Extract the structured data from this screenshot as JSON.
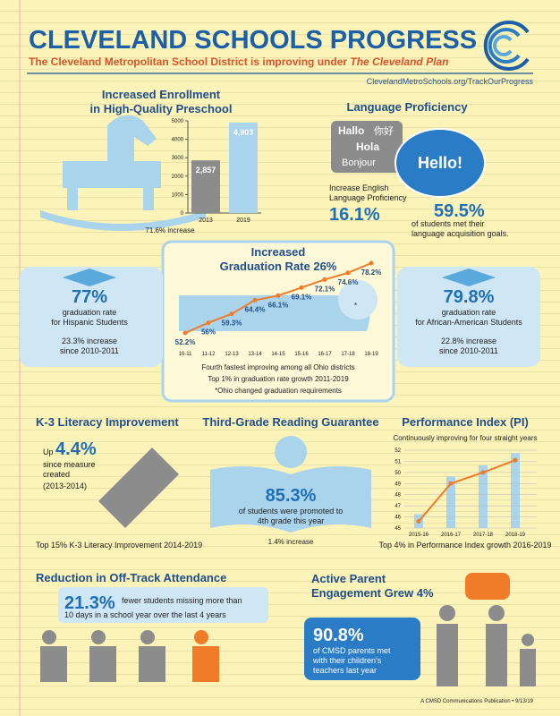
{
  "header": {
    "title": "CLEVELAND SCHOOLS PROGRESS",
    "subtitle": "The Cleveland Metropolitan School District is improving under",
    "subtitle_em": "The Cleveland Plan",
    "url": "ClevelandMetroSchools.org/TrackOurProgress"
  },
  "enrollment": {
    "type": "bar",
    "title": [
      "Increased Enrollment",
      "in High-Quality Preschool"
    ],
    "categories": [
      "2013",
      "2019"
    ],
    "values": [
      2857,
      4903
    ],
    "value_labels": [
      "2,857",
      "4,903"
    ],
    "colors": [
      "#8c8c8c",
      "#a9d4ec"
    ],
    "ylim": [
      0,
      5000
    ],
    "yticks": [
      0,
      1000,
      2000,
      3000,
      4000,
      5000
    ],
    "note": "71.6% increase"
  },
  "language": {
    "title": "Language Proficiency",
    "greetings": [
      "Hallo",
      "你好",
      "Hola",
      "Bonjour",
      "Hello!"
    ],
    "label": [
      "Increase English",
      "Language Proficiency"
    ],
    "stat": "16.1%",
    "stat2": "59.5%",
    "text2": [
      "of students met their",
      "language acquisition goals."
    ]
  },
  "graduation": {
    "type": "line",
    "title": [
      "Increased",
      "Graduation Rate 26%"
    ],
    "categories": [
      "10-11",
      "11-12",
      "12-13",
      "13-14",
      "14-15",
      "15-16",
      "16-17",
      "17-18",
      "18-19"
    ],
    "values": [
      52.2,
      56,
      59.3,
      64.4,
      66.1,
      69.1,
      72.1,
      74.6,
      78.2
    ],
    "value_labels": [
      "52.2%",
      "56%",
      "59.3%",
      "64.4%",
      "66.1%",
      "69.1%",
      "72.1%",
      "74.6%",
      "78.2%"
    ],
    "asterisk": "*",
    "color": "#f07c2a",
    "notes": [
      "Fourth fastest improving among all Ohio districts",
      "Top 1% in graduation rate growth 2011-2019",
      "*Ohio changed graduation requirements"
    ]
  },
  "hispanic": {
    "stat": "77%",
    "label": [
      "graduation rate",
      "for Hispanic Students"
    ],
    "note": [
      "23.3% increase",
      "since 2010-2011"
    ]
  },
  "african": {
    "stat": "79.8%",
    "label": [
      "graduation rate",
      "for African-American Students"
    ],
    "note": [
      "22.8% increase",
      "since 2010-2011"
    ]
  },
  "literacy": {
    "title": "K-3 Literacy Improvement",
    "prefix": "Up",
    "stat": "4.4%",
    "text": [
      "since measure",
      "created",
      "(2013-2014)"
    ],
    "footer": "Top 15% K-3 Literacy Improvement 2014-2019"
  },
  "reading": {
    "title": "Third-Grade Reading Guarantee",
    "stat": "85.3%",
    "text": [
      "of students were promoted to",
      "4th grade this year"
    ],
    "note": "1.4% increase"
  },
  "pi": {
    "type": "line",
    "title": "Performance Index (PI)",
    "subtitle": "Continuously improving for four straight years",
    "categories": [
      "2015-16",
      "2016-17",
      "2017-18",
      "2018-19"
    ],
    "values": [
      45.6,
      49,
      50,
      51.1
    ],
    "color": "#f07c2a",
    "ylim": [
      45,
      52
    ],
    "yticks": [
      45,
      46,
      47,
      48,
      49,
      50,
      51,
      52
    ],
    "footer": "Top 4% in Performance Index growth 2016-2019"
  },
  "attendance": {
    "title": "Reduction in Off-Track Attendance",
    "stat": "21.3%",
    "text": [
      "fewer students missing more than",
      "10 days in a school year over the last 4 years"
    ]
  },
  "parents": {
    "title": [
      "Active Parent",
      "Engagement Grew 4%"
    ],
    "stat": "90.8%",
    "text": [
      "of CMSD parents met",
      "with their children's",
      "teachers last year"
    ]
  },
  "footer": "A CMSD Communications Publication  •  9/13/19"
}
